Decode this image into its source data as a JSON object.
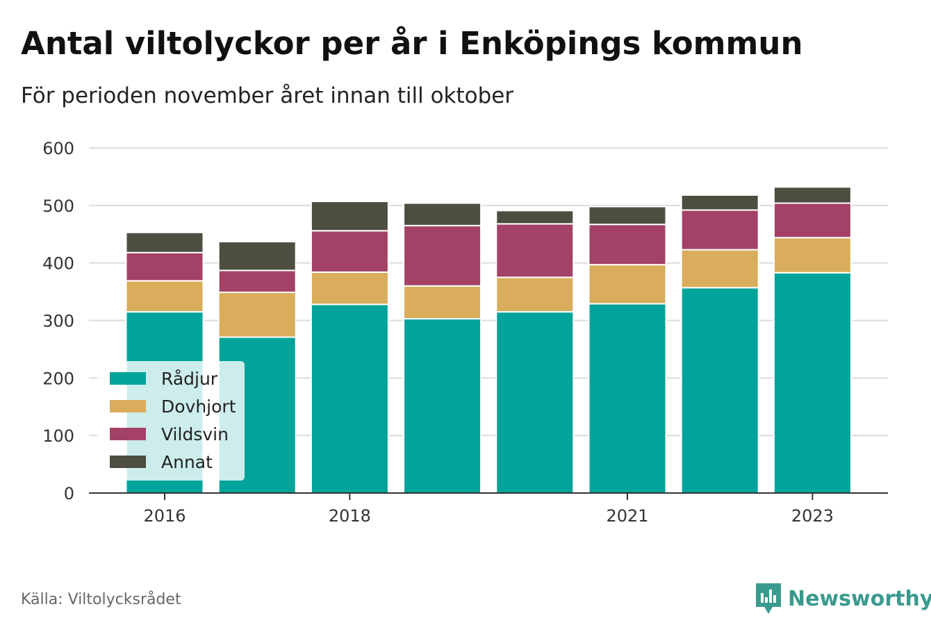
{
  "title": "Antal viltolyckor per år i Enköpings kommun",
  "subtitle": "För perioden november året innan till oktober",
  "source": "Källa: Viltolycksrådet",
  "brand": {
    "name": "Newsworthy",
    "icon": "newsworthy-logo-icon",
    "color": "#3a9a8e"
  },
  "chart_data": {
    "type": "bar",
    "stacked": true,
    "categories": [
      "2016",
      "2017",
      "2018",
      "2019",
      "2020",
      "2021",
      "2022",
      "2023"
    ],
    "x_tick_labels": [
      "2016",
      "",
      "2018",
      "",
      "",
      "2021",
      "",
      "2023"
    ],
    "y_ticks": [
      0,
      100,
      200,
      300,
      400,
      500,
      600
    ],
    "ylim": [
      0,
      600
    ],
    "grid": true,
    "legend_position": "bottom-left",
    "series": [
      {
        "name": "Rådjur",
        "color": "#00a39a",
        "values": [
          315,
          271,
          328,
          303,
          315,
          329,
          357,
          383
        ]
      },
      {
        "name": "Dovhjort",
        "color": "#d9ad5b",
        "values": [
          54,
          78,
          56,
          57,
          60,
          68,
          66,
          61
        ]
      },
      {
        "name": "Vildsvin",
        "color": "#a34266",
        "values": [
          49,
          38,
          72,
          105,
          93,
          70,
          69,
          60
        ]
      },
      {
        "name": "Annat",
        "color": "#4d4e40",
        "values": [
          35,
          50,
          51,
          39,
          23,
          31,
          26,
          28
        ]
      }
    ]
  }
}
